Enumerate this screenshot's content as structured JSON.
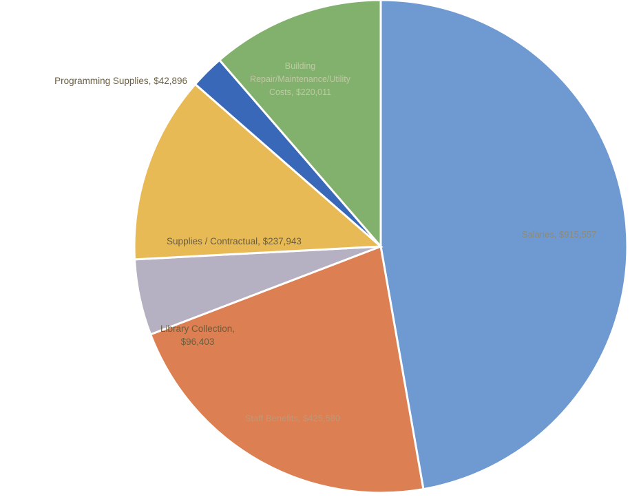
{
  "chart_data": {
    "type": "pie",
    "title": "",
    "slices": [
      {
        "label": "Salaries, $915,557",
        "value": 915557,
        "color": "#6f99d1",
        "label_color": "#8e8a73"
      },
      {
        "label": "Staff Benefits, $425,580",
        "value": 425580,
        "color": "#dc7f53",
        "label_color": "#b89a7c"
      },
      {
        "label": "Library Collection, $96,403",
        "value": 96403,
        "color": "#b6b1c2",
        "label_color": "#6b5e3e"
      },
      {
        "label": "Supplies / Contractual, $237,943",
        "value": 237943,
        "color": "#e8ba55",
        "label_color": "#6b5e3e"
      },
      {
        "label": "Programming Supplies, $42,896",
        "value": 42896,
        "color": "#3a68b9",
        "label_color": "#6b5e3e"
      },
      {
        "label": "Building Repair/Maintenance/Utility Costs, $220,011",
        "value": 220011,
        "color": "#82b16d",
        "label_color": "#bfc8a4"
      }
    ],
    "start_angle": "12 o'clock",
    "direction": "clockwise",
    "legend": "none"
  }
}
